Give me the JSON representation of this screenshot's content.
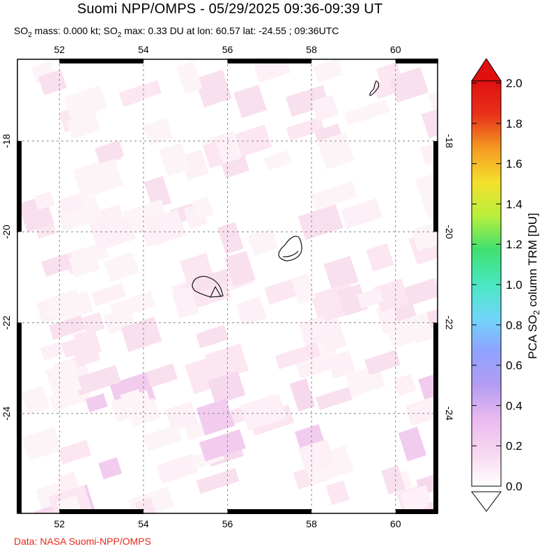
{
  "title": "Suomi NPP/OMPS - 05/29/2025 09:36-09:39 UT",
  "subtitle": {
    "so2_word": "SO",
    "sub2": "2",
    "mass_text": " mass: 0.000 kt; ",
    "max_text": " max: 0.33 DU at lon: 60.57 lat: -24.55 ; 09:36UTC"
  },
  "map": {
    "lon_ticks": [
      "52",
      "54",
      "56",
      "58",
      "60"
    ],
    "lat_ticks": [
      "-18",
      "-20",
      "-22",
      "-24"
    ],
    "lon_range": [
      51,
      61
    ],
    "lat_range": [
      -26.2,
      -16.2
    ],
    "colors": {
      "frame": "#000000",
      "grid": "#888888",
      "coast": "#111111"
    }
  },
  "colorbar": {
    "label_prefix": "PCA SO",
    "label_sub": "2",
    "label_suffix": " column TRM [DU]",
    "ticks": [
      "0.0",
      "0.2",
      "0.4",
      "0.6",
      "0.8",
      "1.0",
      "1.2",
      "1.4",
      "1.6",
      "1.8",
      "2.0"
    ],
    "range": [
      0.0,
      2.0
    ],
    "colors": [
      "#ffffff",
      "#f7d7f0",
      "#e9b9f0",
      "#b49cf2",
      "#8fa2ff",
      "#6fd6f8",
      "#48e8c0",
      "#3fe070",
      "#b8ef3c",
      "#f5e02c",
      "#f59a22",
      "#e8321a",
      "#e01010"
    ]
  },
  "credit": "Data: NASA Suomi-NPP/OMPS"
}
